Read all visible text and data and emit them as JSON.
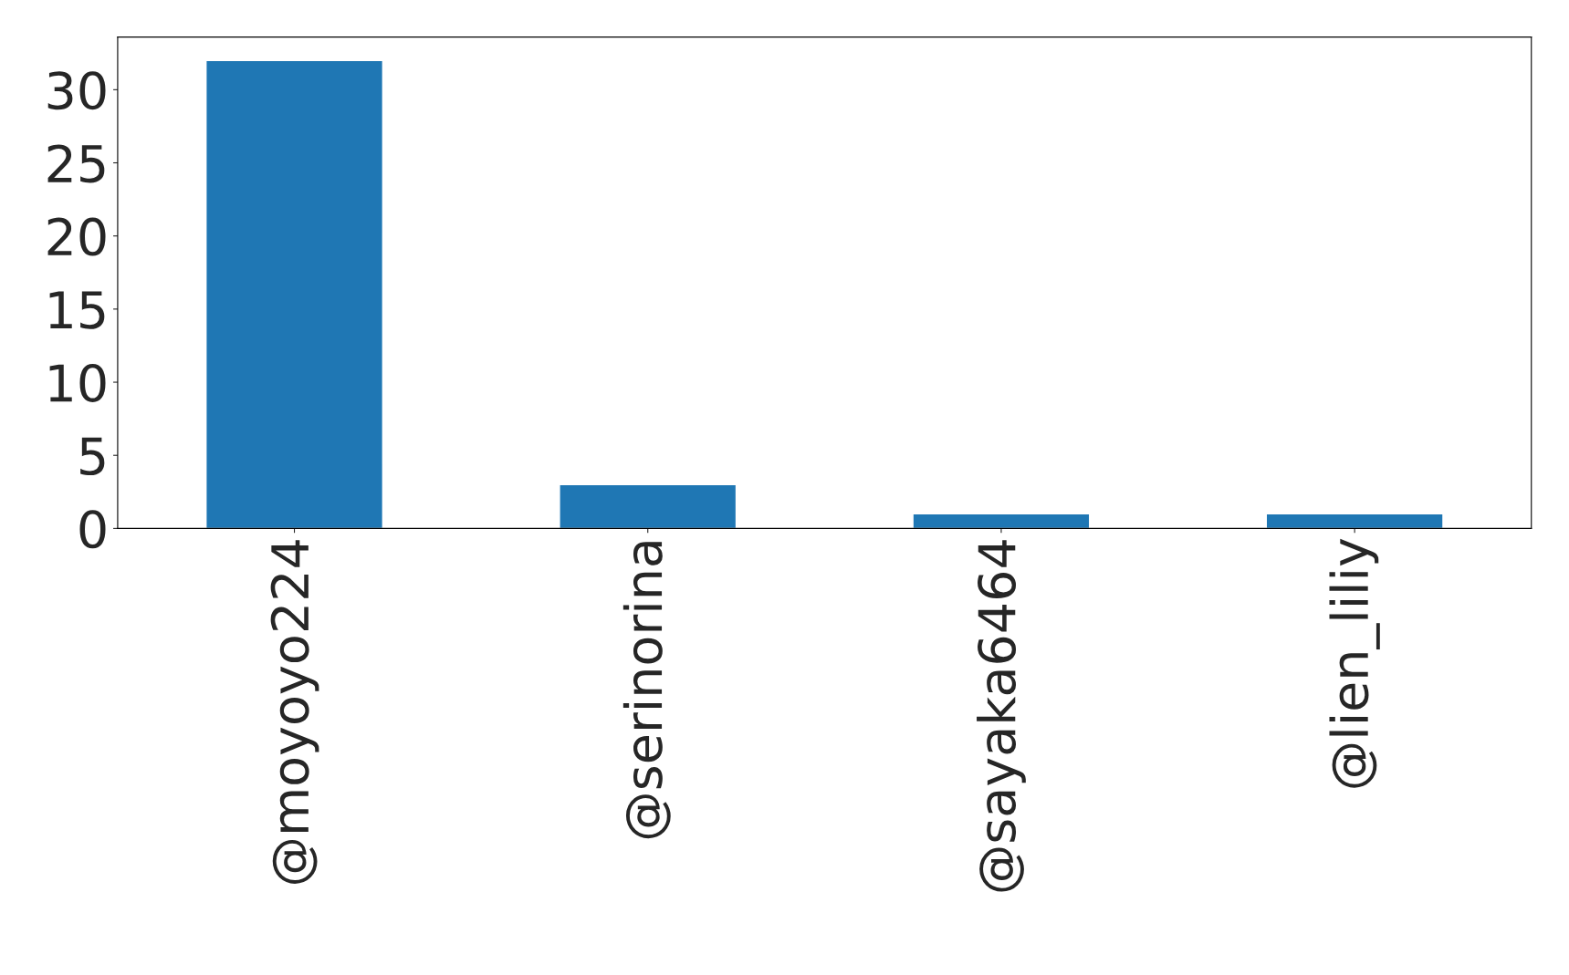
{
  "chart_data": {
    "type": "bar",
    "categories": [
      "@moyoyo224",
      "@serinorina",
      "@sayaka6464",
      "@lien_liliy"
    ],
    "values": [
      32,
      3,
      1,
      1
    ],
    "color": "#1f77b4",
    "ylim": [
      0,
      33.6
    ],
    "yticks": [
      0,
      5,
      10,
      15,
      20,
      25,
      30
    ],
    "grid": false,
    "legend": false
  }
}
